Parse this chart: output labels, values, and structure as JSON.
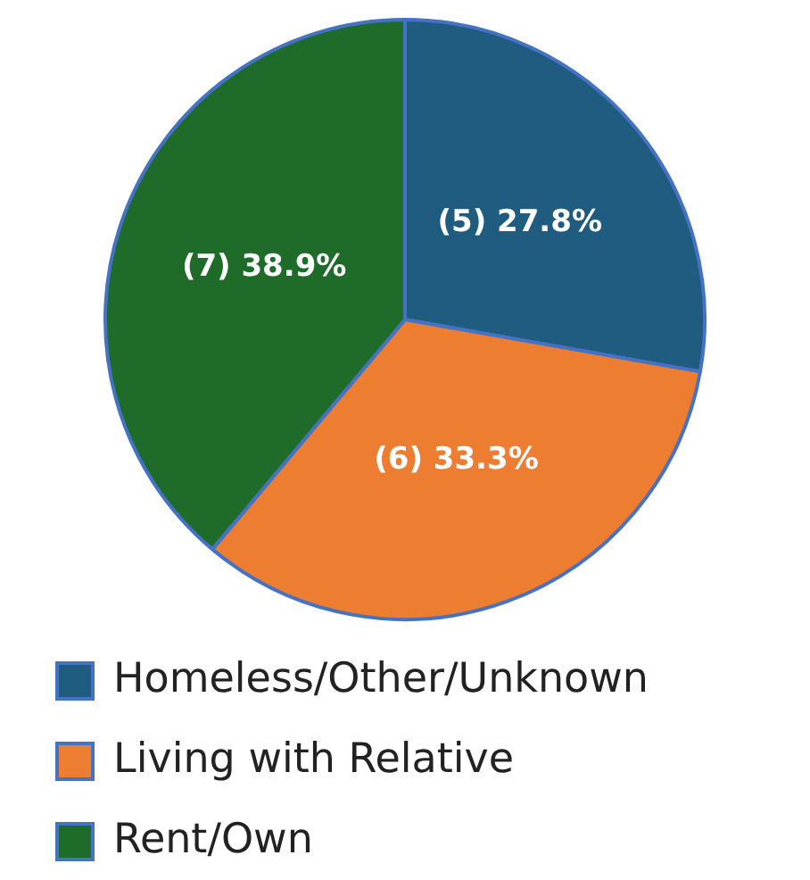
{
  "chart_data": {
    "type": "pie",
    "categories": [
      "Homeless/Other/Unknown",
      "Living with Relative",
      "Rent/Own"
    ],
    "values": [
      5,
      6,
      7
    ],
    "colors": [
      "#1f5c80",
      "#ed7d31",
      "#1e6b2a"
    ],
    "value_labels": [
      "(5) 27.8%",
      "(6) 33.3%",
      "(7) 38.9%"
    ],
    "legend": "bottom"
  }
}
